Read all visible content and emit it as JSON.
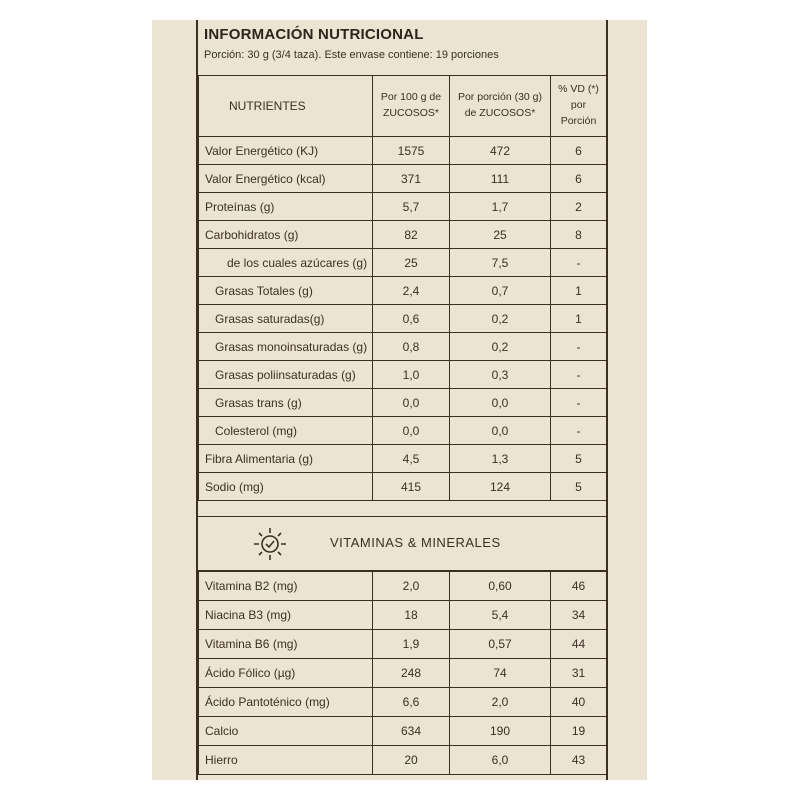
{
  "header": {
    "title": "INFORMACIÓN NUTRICIONAL",
    "serving": "Porción: 30 g (3/4 taza). Este envase contiene: 19 porciones"
  },
  "table": {
    "columns": [
      "NUTRIENTES",
      "Por 100 g de ZUCOSOS*",
      "Por porción (30 g) de ZUCOSOS*",
      "% VD (*) por Porción"
    ],
    "rows": [
      [
        "Valor Energético (KJ)",
        "1575",
        "472",
        "6"
      ],
      [
        "Valor Energético (kcal)",
        "371",
        "111",
        "6"
      ],
      [
        "Proteínas (g)",
        "5,7",
        "1,7",
        "2"
      ],
      [
        "Carbohidratos (g)",
        "82",
        "25",
        "8"
      ],
      [
        "de los cuales azúcares (g)",
        "25",
        "7,5",
        "-"
      ],
      [
        "Grasas Totales (g)",
        "2,4",
        "0,7",
        "1"
      ],
      [
        "Grasas saturadas(g)",
        "0,6",
        "0,2",
        "1"
      ],
      [
        "Grasas monoinsaturadas (g)",
        "0,8",
        "0,2",
        "-"
      ],
      [
        "Grasas poliinsaturadas (g)",
        "1,0",
        "0,3",
        "-"
      ],
      [
        "Grasas trans (g)",
        "0,0",
        "0,0",
        "-"
      ],
      [
        "Colesterol (mg)",
        "0,0",
        "0,0",
        "-"
      ],
      [
        "Fibra Alimentaria (g)",
        "4,5",
        "1,3",
        "5"
      ],
      [
        "Sodio (mg)",
        "415",
        "124",
        "5"
      ]
    ]
  },
  "vitamins": {
    "title": "VITAMINAS & MINERALES",
    "rows": [
      [
        "Vitamina B2 (mg)",
        "2,0",
        "0,60",
        "46"
      ],
      [
        "Niacina B3 (mg)",
        "18",
        "5,4",
        "34"
      ],
      [
        "Vitamina B6 (mg)",
        "1,9",
        "0,57",
        "44"
      ],
      [
        "Ácido Fólico (µg)",
        "248",
        "74",
        "31"
      ],
      [
        "Ácido Pantoténico (mg)",
        "6,6",
        "2,0",
        "40"
      ],
      [
        "Calcio",
        "634",
        "190",
        "19"
      ],
      [
        "Hierro",
        "20",
        "6,0",
        "43"
      ]
    ]
  }
}
